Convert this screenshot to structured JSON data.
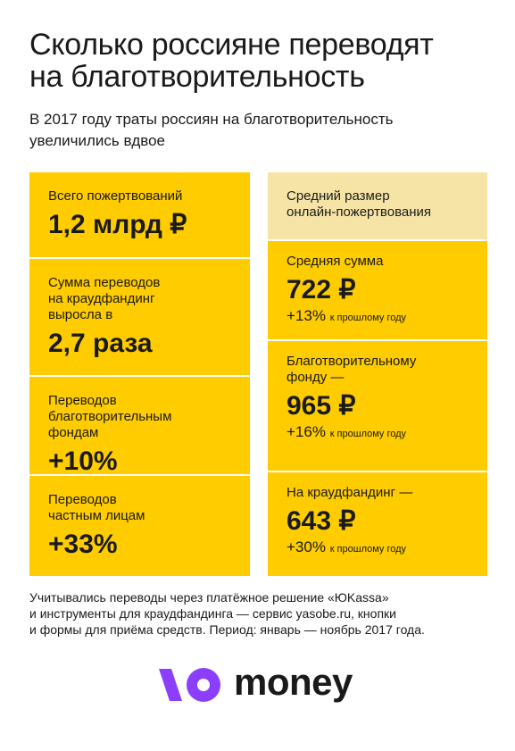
{
  "header": {
    "title_lines": [
      "Сколько россияне переводят",
      "на благотворительность"
    ],
    "subtitle_lines": [
      "В 2017 году траты россиян на благотворительность",
      "увеличились вдвое"
    ]
  },
  "left_cards": [
    {
      "label_lines": [
        "Всего пожертвований"
      ],
      "value": "1,2 млрд ₽"
    },
    {
      "label_lines": [
        "Сумма переводов",
        "на краудфандинг",
        "выросла в"
      ],
      "value": "2,7 раза"
    },
    {
      "label_lines": [
        "Переводов",
        "благотворительным",
        "фондам"
      ],
      "value": "+10%"
    },
    {
      "label_lines": [
        "Переводов",
        "частным лицам"
      ],
      "value": "+33%"
    }
  ],
  "right_header_lines": [
    "Средний размер",
    "онлайн-пожертвования"
  ],
  "right_cards": [
    {
      "label_lines": [
        "Средняя сумма"
      ],
      "value": "722 ₽",
      "change": "+13%",
      "change_note": "к прошлому году"
    },
    {
      "label_lines": [
        "Благотворительному",
        "фонду —"
      ],
      "value": "965 ₽",
      "change": "+16%",
      "change_note": "к прошлому году"
    },
    {
      "label_lines": [
        "На краудфандинг —"
      ],
      "value": "643 ₽",
      "change": "+30%",
      "change_note": "к прошлому году"
    }
  ],
  "footer_lines": [
    "Учитывались переводы через платёжное решение «ЮKassa»",
    "и инструменты для краудфандинга — сервис yasobe.ru, кнопки",
    "и формы для приёма средств. Период: январь — ноябрь 2017 года."
  ],
  "logo": "money"
}
